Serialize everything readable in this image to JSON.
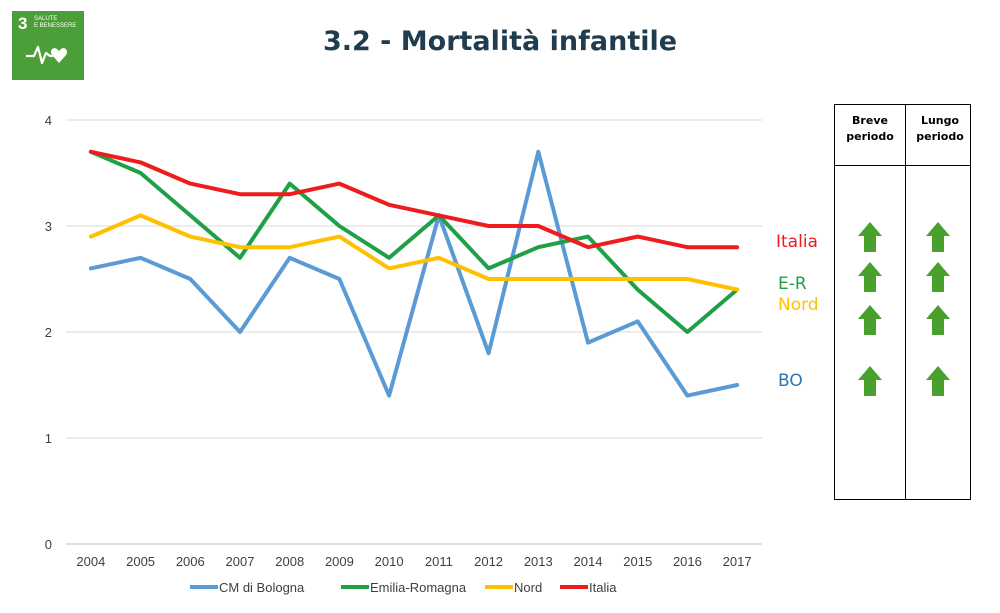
{
  "header": {
    "title": "3.2 - Mortalità infantile",
    "sdg_badge": {
      "number": "3",
      "text_line1": "SALUTE",
      "text_line2": "E BENESSERE",
      "icon": "heartbeat-heart-icon",
      "color": "#4c9f38"
    }
  },
  "chart_data": {
    "type": "line",
    "title": "",
    "xlabel": "",
    "ylabel": "",
    "ylim": [
      0,
      4
    ],
    "yticks": [
      0,
      1,
      2,
      3,
      4
    ],
    "grid": true,
    "legend_position": "bottom",
    "categories": [
      "2004",
      "2005",
      "2006",
      "2007",
      "2008",
      "2009",
      "2010",
      "2011",
      "2012",
      "2013",
      "2014",
      "2015",
      "2016",
      "2017"
    ],
    "series": [
      {
        "name": "CM di Bologna",
        "color": "#5b9bd5",
        "values": [
          2.6,
          2.7,
          2.5,
          2.0,
          2.7,
          2.5,
          1.4,
          3.1,
          1.8,
          3.7,
          1.9,
          2.1,
          1.4,
          1.5
        ]
      },
      {
        "name": "Emilia-Romagna",
        "color": "#1fa046",
        "values": [
          3.7,
          3.5,
          3.1,
          2.7,
          3.4,
          3.0,
          2.7,
          3.1,
          2.6,
          2.8,
          2.9,
          2.4,
          2.0,
          2.4
        ]
      },
      {
        "name": "Nord",
        "color": "#ffc000",
        "values": [
          2.9,
          3.1,
          2.9,
          2.8,
          2.8,
          2.9,
          2.6,
          2.7,
          2.5,
          2.5,
          2.5,
          2.5,
          2.5,
          2.4
        ]
      },
      {
        "name": "Italia",
        "color": "#ee1c1c",
        "values": [
          3.7,
          3.6,
          3.4,
          3.3,
          3.3,
          3.4,
          3.2,
          3.1,
          3.0,
          3.0,
          2.8,
          2.9,
          2.8,
          2.8
        ]
      }
    ]
  },
  "side_labels": [
    {
      "text": "Italia",
      "color": "#ee1c1c"
    },
    {
      "text": "E-R",
      "color": "#1fa046"
    },
    {
      "text": "Nord",
      "color": "#ffc000"
    },
    {
      "text": "BO",
      "color": "#2e75b6"
    }
  ],
  "trend_table": {
    "col1_line1": "Breve",
    "col1_line2": "periodo",
    "col2_line1": "Lungo",
    "col2_line2": "periodo",
    "arrow_icon": "up-arrow-icon",
    "arrow_color": "#4aa02c",
    "rows": [
      {
        "series": "Italia",
        "breve": "up",
        "lungo": "up"
      },
      {
        "series": "E-R",
        "breve": "up",
        "lungo": "up"
      },
      {
        "series": "Nord",
        "breve": "up",
        "lungo": "up"
      },
      {
        "series": "BO",
        "breve": "up",
        "lungo": "up"
      }
    ]
  }
}
